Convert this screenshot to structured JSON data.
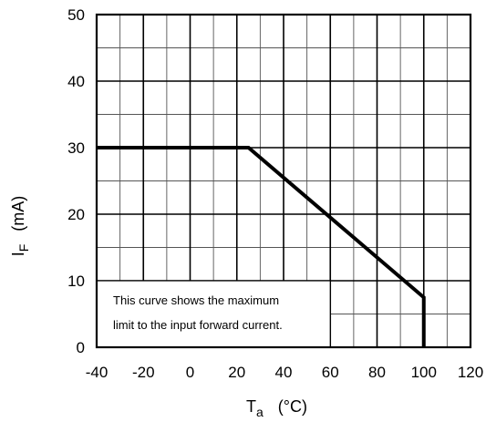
{
  "chart_data": {
    "type": "line",
    "title": "",
    "xlabel": {
      "main": "T",
      "sub": "a",
      "unit": "(°C)"
    },
    "ylabel": {
      "main": "I",
      "sub": "F",
      "unit": "(mA)"
    },
    "xlim": [
      -40,
      120
    ],
    "ylim": [
      0,
      50
    ],
    "x_ticks": [
      "-40",
      "-20",
      "0",
      "20",
      "40",
      "60",
      "80",
      "100",
      "120"
    ],
    "y_ticks": [
      "0",
      "10",
      "20",
      "30",
      "40",
      "50"
    ],
    "grid": true,
    "series": [
      {
        "x": [
          -40,
          25,
          100,
          100
        ],
        "y": [
          30,
          30,
          7.5,
          0
        ]
      }
    ],
    "annotation": {
      "lines": [
        "This curve shows the maximum",
        "limit to the input forward current."
      ]
    }
  }
}
